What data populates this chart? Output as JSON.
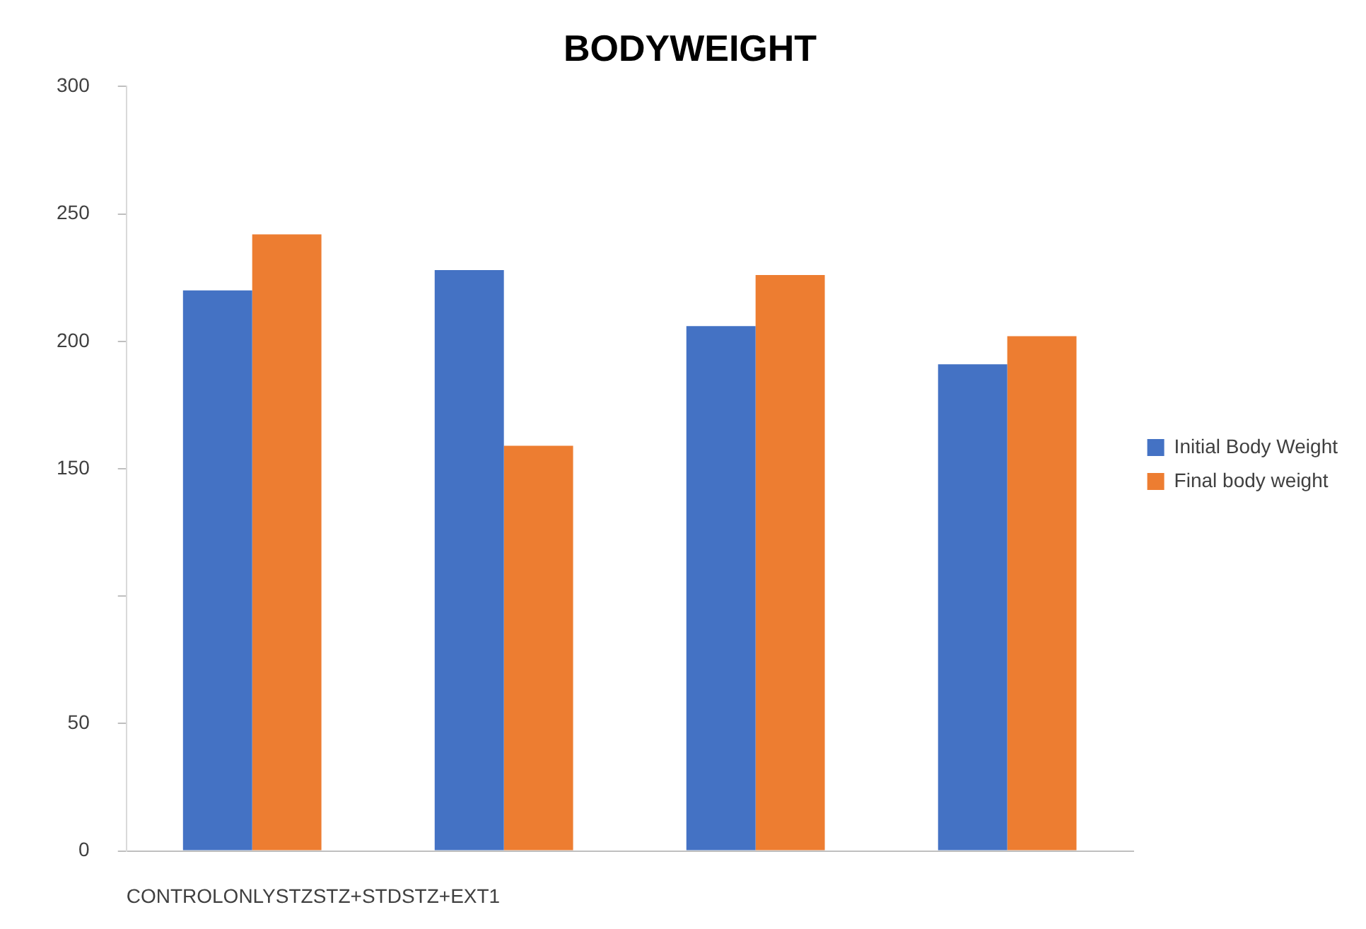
{
  "chart_data": {
    "type": "bar",
    "title": "BODYWEIGHT",
    "xlabel": "CONTROLONLYSTZSTZ+STDSTZ+EXT1",
    "categories": [
      null,
      null,
      null,
      null
    ],
    "series": [
      {
        "name": "Initial Body Weight",
        "color": "#4472c4",
        "values": [
          220,
          228,
          206,
          191
        ]
      },
      {
        "name": "Final body weight",
        "color": "#ed7d31",
        "values": [
          242,
          159,
          226,
          202
        ]
      }
    ],
    "ylim": [
      0,
      300
    ],
    "yticks": [
      0,
      50,
      {
        "value": 100,
        "label": null
      },
      150,
      200,
      250,
      300
    ],
    "grid": false,
    "legend": "right"
  }
}
